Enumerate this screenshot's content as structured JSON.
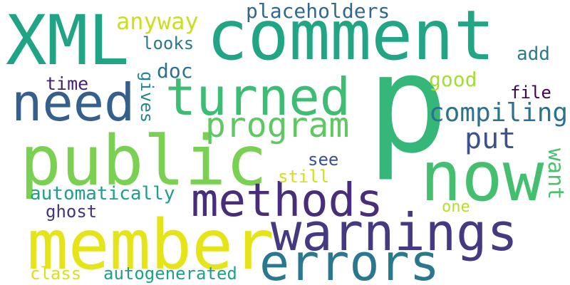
{
  "words": [
    {
      "text": "XML",
      "color": "#20a486"
    },
    {
      "text": "comment",
      "color": "#21a585"
    },
    {
      "text": "p",
      "color": "#35b779"
    },
    {
      "text": "public",
      "color": "#7ad151"
    },
    {
      "text": "member",
      "color": "#e4e419"
    },
    {
      "text": "now",
      "color": "#44bf70"
    },
    {
      "text": "need",
      "color": "#355f8d"
    },
    {
      "text": "turned",
      "color": "#3dbc74"
    },
    {
      "text": "warnings",
      "color": "#443983"
    },
    {
      "text": "methods",
      "color": "#472d7b"
    },
    {
      "text": "errors",
      "color": "#2a788e"
    },
    {
      "text": "program",
      "color": "#5ec962"
    },
    {
      "text": "placeholders",
      "color": "#31688e"
    },
    {
      "text": "compiling",
      "color": "#2c728e"
    },
    {
      "text": "anyway",
      "color": "#c8e020"
    },
    {
      "text": "put",
      "color": "#3b528b"
    },
    {
      "text": "want",
      "color": "#4ac16d"
    },
    {
      "text": "looks",
      "color": "#2a788e"
    },
    {
      "text": "add",
      "color": "#287c8e"
    },
    {
      "text": "doc",
      "color": "#2c728e"
    },
    {
      "text": "good",
      "color": "#a5db36"
    },
    {
      "text": "time",
      "color": "#481f70"
    },
    {
      "text": "file",
      "color": "#440154"
    },
    {
      "text": "gives",
      "color": "#25858e"
    },
    {
      "text": "see",
      "color": "#3b528b"
    },
    {
      "text": "still",
      "color": "#d0e11c"
    },
    {
      "text": "automatically",
      "color": "#1f9e89"
    },
    {
      "text": "ghost",
      "color": "#46327e"
    },
    {
      "text": "one",
      "color": "#b5de2b"
    },
    {
      "text": "class",
      "color": "#d8e219"
    },
    {
      "text": "autogenerated",
      "color": "#1fa187"
    }
  ]
}
